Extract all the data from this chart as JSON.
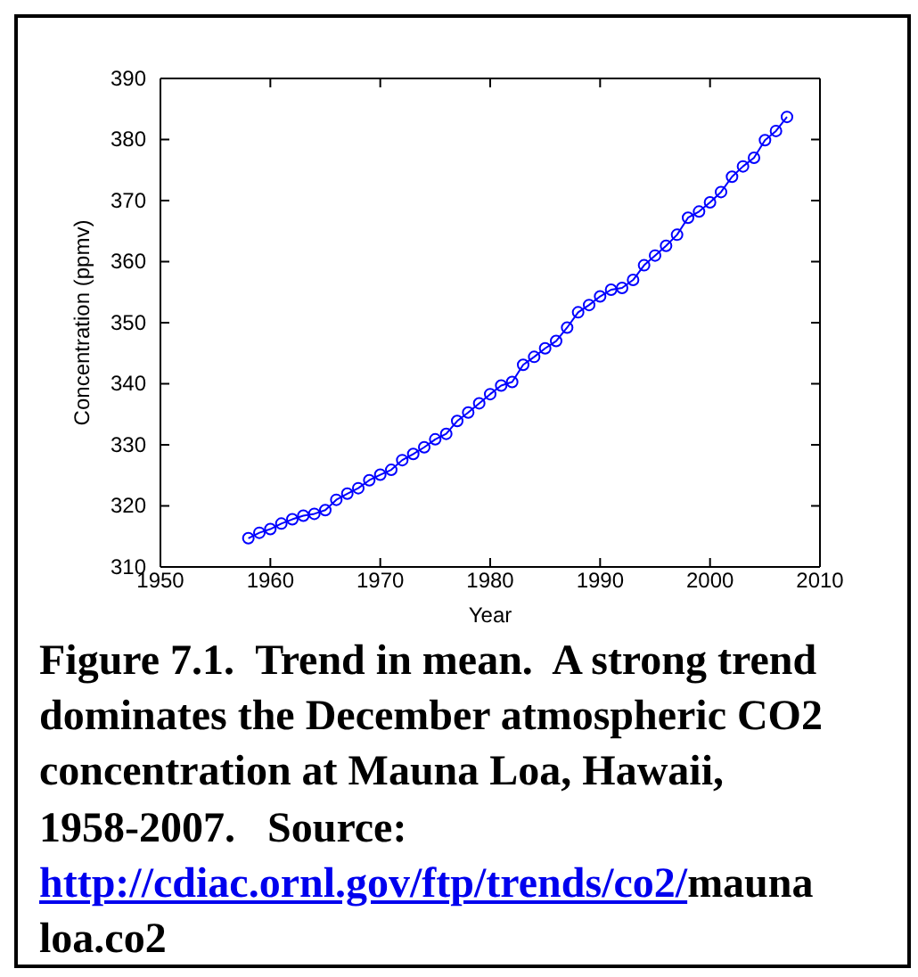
{
  "chart_data": {
    "type": "line",
    "xlabel": "Year",
    "ylabel": "Concentration (ppmv)",
    "x": [
      1958,
      1959,
      1960,
      1961,
      1962,
      1963,
      1964,
      1965,
      1966,
      1967,
      1968,
      1969,
      1970,
      1971,
      1972,
      1973,
      1974,
      1975,
      1976,
      1977,
      1978,
      1979,
      1980,
      1981,
      1982,
      1983,
      1984,
      1985,
      1986,
      1987,
      1988,
      1989,
      1990,
      1991,
      1992,
      1993,
      1994,
      1995,
      1996,
      1997,
      1998,
      1999,
      2000,
      2001,
      2002,
      2003,
      2004,
      2005,
      2006,
      2007
    ],
    "series": [
      {
        "color": "#0000ff",
        "values": [
          314.7,
          315.6,
          316.2,
          317.1,
          317.8,
          318.4,
          318.7,
          319.3,
          321.0,
          322.0,
          322.9,
          324.2,
          325.1,
          325.9,
          327.5,
          328.5,
          329.6,
          330.9,
          331.8,
          333.9,
          335.3,
          336.8,
          338.3,
          339.7,
          340.3,
          343.1,
          344.4,
          345.8,
          347.0,
          349.2,
          351.7,
          352.9,
          354.3,
          355.4,
          355.7,
          357.0,
          359.4,
          361.0,
          362.6,
          364.4,
          367.2,
          368.2,
          369.7,
          371.4,
          373.9,
          375.6,
          377.0,
          379.9,
          381.4,
          383.7
        ]
      }
    ],
    "xlim": [
      1950,
      2010
    ],
    "xticks": [
      1950,
      1960,
      1970,
      1980,
      1990,
      2000,
      2010
    ],
    "ylim": [
      310,
      390
    ],
    "yticks": [
      310,
      320,
      330,
      340,
      350,
      360,
      370,
      380,
      390
    ],
    "marker": "circle",
    "line_style": "solid",
    "grid": false,
    "annotations": [
      "Figure 7.1.  Trend in mean.  A strong trend dominates the December atmospheric CO2 concentration at Mauna Loa, Hawaii, 1958-2007.   Source: http://cdiac.ornl.gov/ftp/trends/co2/maunaloa.co2"
    ]
  }
}
